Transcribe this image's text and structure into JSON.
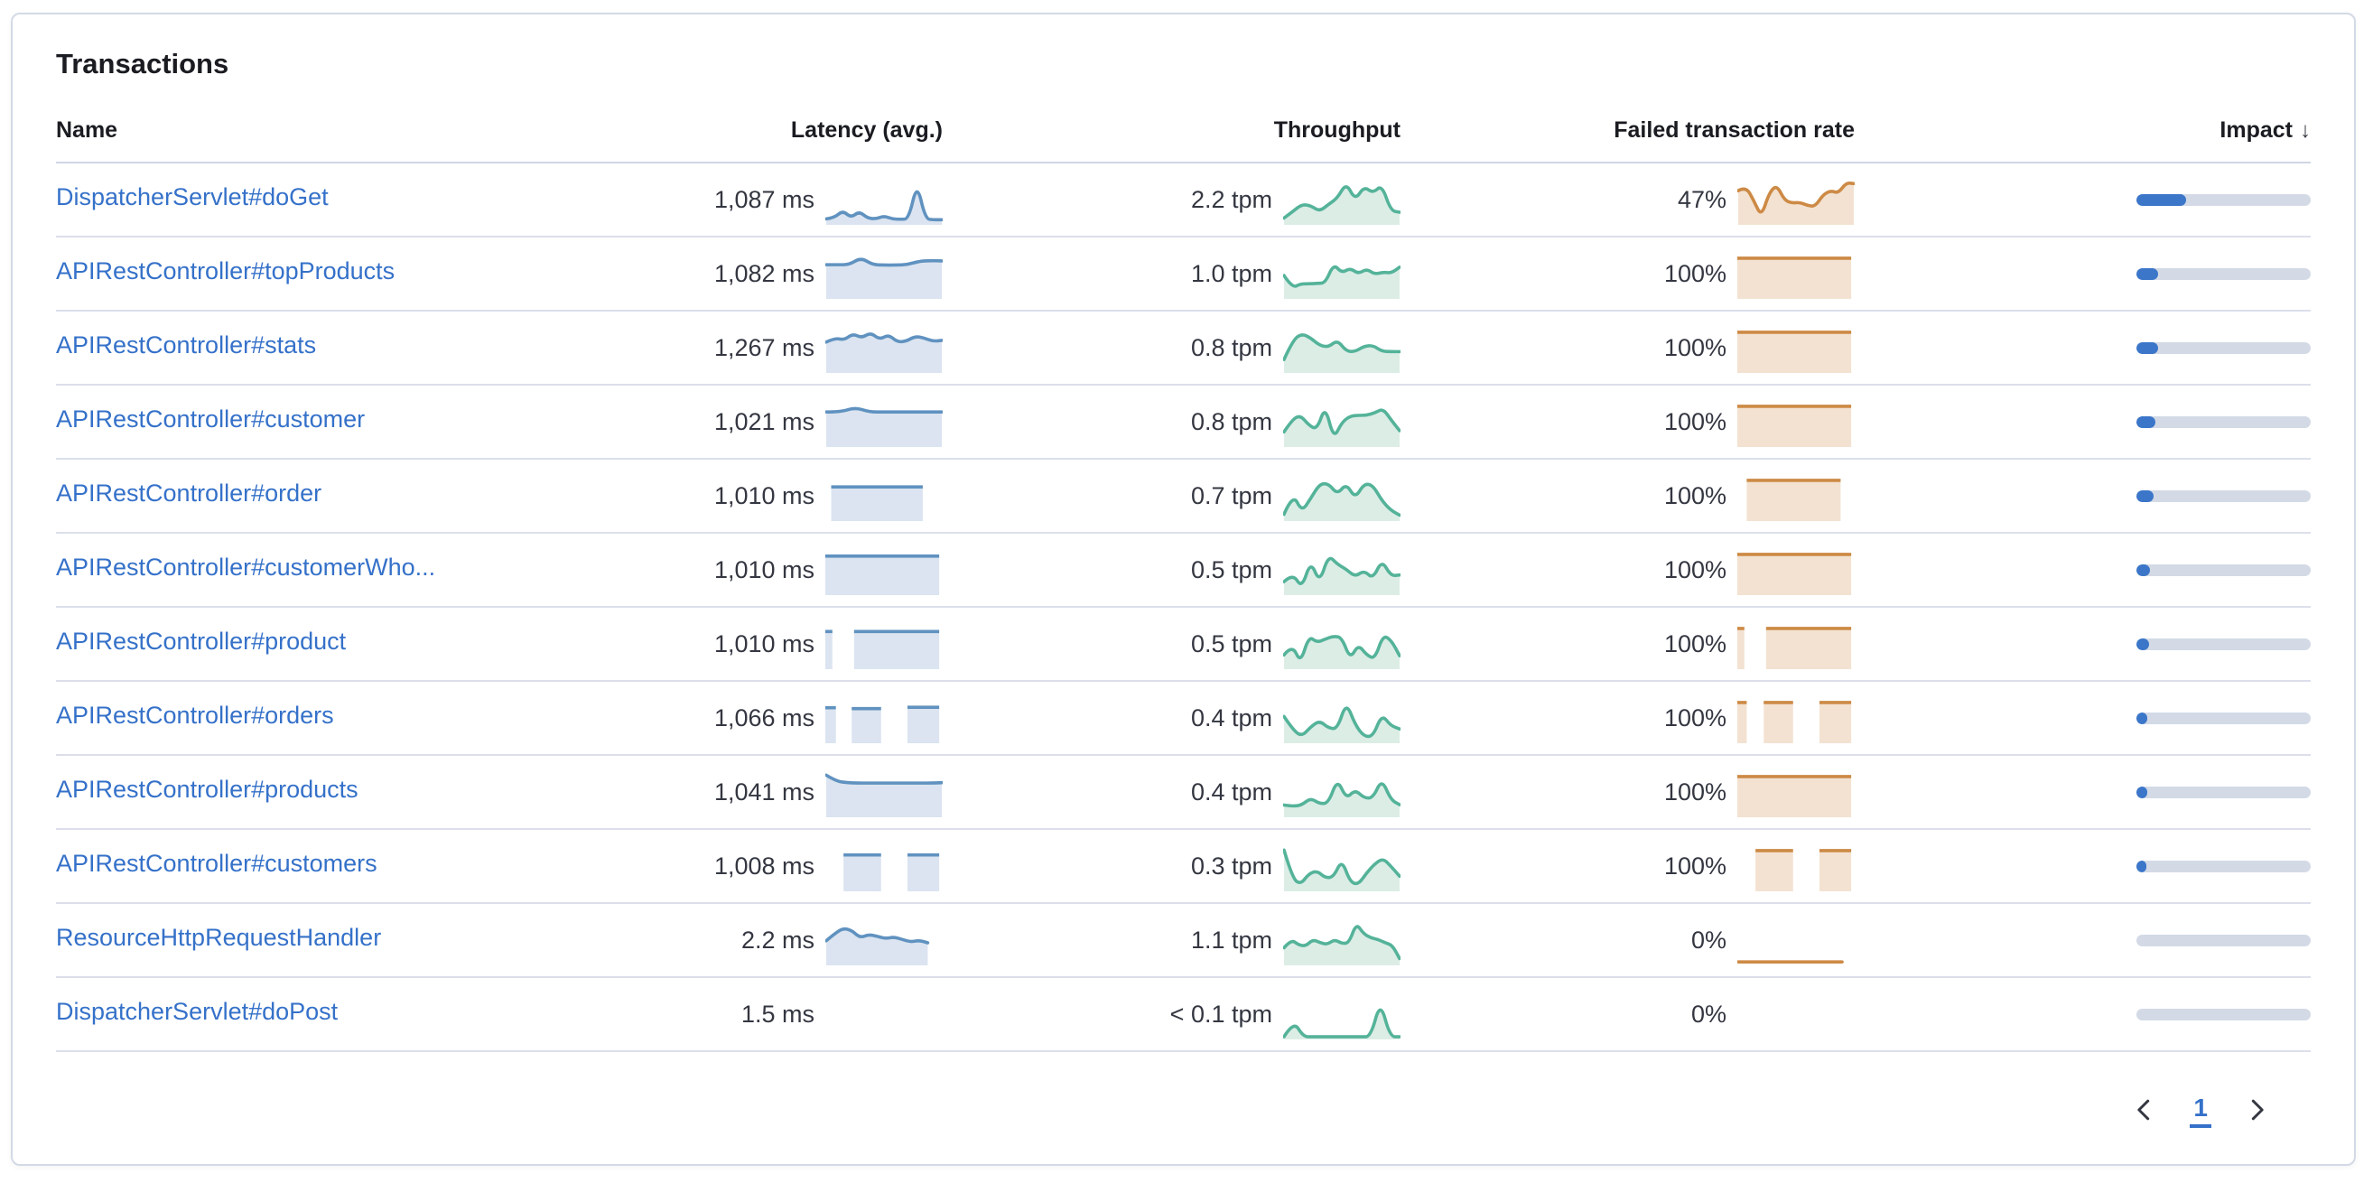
{
  "card": {
    "title": "Transactions"
  },
  "table": {
    "columns": [
      {
        "label": "Name",
        "align": "left"
      },
      {
        "label": "Latency (avg.)",
        "align": "right"
      },
      {
        "label": "Throughput",
        "align": "right"
      },
      {
        "label": "Failed transaction rate",
        "align": "right"
      },
      {
        "label": "Impact",
        "align": "right",
        "sorted": "desc",
        "sort_icon": "arrow-down"
      }
    ],
    "rows": [
      {
        "name": "DispatcherServlet#doGet",
        "latency": "1,087 ms",
        "latency_spark": {
          "type": "area",
          "values": [
            0.1,
            0.13,
            0.3,
            0.13,
            0.28,
            0.12,
            0.1,
            0.17,
            0.1,
            0.09,
            0.1,
            0.97,
            0.1,
            0.08,
            0.08
          ]
        },
        "throughput": "2.2 tpm",
        "throughput_spark": {
          "type": "area",
          "values": [
            0.12,
            0.28,
            0.45,
            0.42,
            0.28,
            0.45,
            0.6,
            0.97,
            0.55,
            0.88,
            0.72,
            0.92,
            0.3,
            0.26
          ]
        },
        "failed_rate": "47%",
        "failed_spark": {
          "type": "area",
          "values": [
            0.78,
            0.88,
            0.55,
            0.15,
            0.72,
            0.92,
            0.55,
            0.48,
            0.5,
            0.42,
            0.4,
            0.68,
            0.78,
            0.72,
            0.97,
            0.95
          ]
        },
        "impact_pct": 28.5
      },
      {
        "name": "APIRestController#topProducts",
        "latency": "1,082 ms",
        "latency_spark": {
          "type": "area",
          "values": [
            0.78,
            0.78,
            0.78,
            0.95,
            0.78,
            0.77,
            0.77,
            0.78,
            0.86,
            0.88,
            0.87
          ]
        },
        "throughput": "1.0 tpm",
        "throughput_spark": {
          "type": "area",
          "values": [
            0.52,
            0.22,
            0.32,
            0.32,
            0.33,
            0.34,
            0.8,
            0.58,
            0.7,
            0.56,
            0.68,
            0.55,
            0.6,
            0.58,
            0.72
          ]
        },
        "failed_rate": "100%",
        "failed_spark": {
          "type": "blocks",
          "segments": [
            {
              "from": 0.0,
              "to": 0.97,
              "level": 0.97
            }
          ]
        },
        "impact_pct": 12.6
      },
      {
        "name": "APIRestController#stats",
        "latency": "1,267 ms",
        "latency_spark": {
          "type": "area",
          "values": [
            0.7,
            0.8,
            0.75,
            0.9,
            0.8,
            0.93,
            0.76,
            0.88,
            0.7,
            0.72,
            0.84,
            0.8,
            0.72,
            0.74
          ]
        },
        "throughput": "0.8 tpm",
        "throughput_spark": {
          "type": "area",
          "values": [
            0.28,
            0.75,
            0.9,
            0.8,
            0.62,
            0.58,
            0.75,
            0.48,
            0.47,
            0.6,
            0.62,
            0.48,
            0.47,
            0.47
          ]
        },
        "failed_rate": "100%",
        "failed_spark": {
          "type": "blocks",
          "segments": [
            {
              "from": 0.0,
              "to": 0.97,
              "level": 0.97
            }
          ]
        },
        "impact_pct": 12.4
      },
      {
        "name": "APIRestController#customer",
        "latency": "1,021 ms",
        "latency_spark": {
          "type": "area",
          "values": [
            0.8,
            0.8,
            0.91,
            0.8,
            0.8,
            0.8,
            0.8,
            0.8,
            0.8
          ]
        },
        "throughput": "0.8 tpm",
        "throughput_spark": {
          "type": "area",
          "values": [
            0.32,
            0.62,
            0.72,
            0.48,
            0.38,
            0.95,
            0.15,
            0.55,
            0.7,
            0.72,
            0.72,
            0.78,
            0.88,
            0.6,
            0.35
          ]
        },
        "failed_rate": "100%",
        "failed_spark": {
          "type": "blocks",
          "segments": [
            {
              "from": 0.0,
              "to": 0.97,
              "level": 0.97
            }
          ]
        },
        "impact_pct": 11.0
      },
      {
        "name": "APIRestController#order",
        "latency": "1,010 ms",
        "latency_spark": {
          "type": "blocks",
          "segments": [
            {
              "from": 0.05,
              "to": 0.83,
              "level": 0.82
            }
          ]
        },
        "throughput": "0.7 tpm",
        "throughput_spark": {
          "type": "area",
          "values": [
            0.12,
            0.62,
            0.18,
            0.5,
            0.85,
            0.86,
            0.6,
            0.86,
            0.5,
            0.86,
            0.82,
            0.45,
            0.22,
            0.1
          ]
        },
        "failed_rate": "100%",
        "failed_spark": {
          "type": "blocks",
          "segments": [
            {
              "from": 0.08,
              "to": 0.88,
              "level": 0.97
            }
          ]
        },
        "impact_pct": 9.6
      },
      {
        "name": "APIRestController#customerWho...",
        "latency": "1,010 ms",
        "latency_spark": {
          "type": "blocks",
          "segments": [
            {
              "from": 0.0,
              "to": 0.97,
              "level": 0.93
            }
          ]
        },
        "throughput": "0.5 tpm",
        "throughput_spark": {
          "type": "area",
          "values": [
            0.28,
            0.48,
            0.12,
            0.78,
            0.25,
            0.92,
            0.7,
            0.58,
            0.4,
            0.55,
            0.35,
            0.8,
            0.42,
            0.44
          ]
        },
        "failed_rate": "100%",
        "failed_spark": {
          "type": "blocks",
          "segments": [
            {
              "from": 0.0,
              "to": 0.97,
              "level": 0.97
            }
          ]
        },
        "impact_pct": 8.0
      },
      {
        "name": "APIRestController#product",
        "latency": "1,010 ms",
        "latency_spark": {
          "type": "blocks",
          "segments": [
            {
              "from": 0.0,
              "to": 0.06,
              "level": 0.9
            },
            {
              "from": 0.245,
              "to": 0.97,
              "level": 0.9
            }
          ]
        },
        "throughput": "0.5 tpm",
        "throughput_spark": {
          "type": "area",
          "values": [
            0.3,
            0.55,
            0.1,
            0.75,
            0.6,
            0.68,
            0.75,
            0.72,
            0.2,
            0.55,
            0.3,
            0.2,
            0.78,
            0.65,
            0.28
          ]
        },
        "failed_rate": "100%",
        "failed_spark": {
          "type": "blocks",
          "segments": [
            {
              "from": 0.0,
              "to": 0.06,
              "level": 0.97
            },
            {
              "from": 0.245,
              "to": 0.97,
              "level": 0.97
            }
          ]
        },
        "impact_pct": 7.0
      },
      {
        "name": "APIRestController#orders",
        "latency": "1,066 ms",
        "latency_spark": {
          "type": "blocks",
          "segments": [
            {
              "from": 0.0,
              "to": 0.09,
              "level": 0.85
            },
            {
              "from": 0.225,
              "to": 0.475,
              "level": 0.83
            },
            {
              "from": 0.7,
              "to": 0.97,
              "level": 0.86
            }
          ]
        },
        "throughput": "0.4 tpm",
        "throughput_spark": {
          "type": "area",
          "values": [
            0.6,
            0.28,
            0.12,
            0.35,
            0.5,
            0.32,
            0.3,
            0.95,
            0.4,
            0.12,
            0.12,
            0.65,
            0.38,
            0.3
          ]
        },
        "failed_rate": "100%",
        "failed_spark": {
          "type": "blocks",
          "segments": [
            {
              "from": 0.0,
              "to": 0.08,
              "level": 0.97
            },
            {
              "from": 0.225,
              "to": 0.475,
              "level": 0.97
            },
            {
              "from": 0.7,
              "to": 0.97,
              "level": 0.97
            }
          ]
        },
        "impact_pct": 6.4
      },
      {
        "name": "APIRestController#products",
        "latency": "1,041 ms",
        "latency_spark": {
          "type": "area",
          "values": [
            0.97,
            0.82,
            0.79,
            0.78,
            0.78,
            0.78,
            0.78,
            0.78,
            0.78,
            0.78,
            0.78,
            0.79
          ]
        },
        "throughput": "0.4 tpm",
        "throughput_spark": {
          "type": "area",
          "values": [
            0.25,
            0.22,
            0.25,
            0.42,
            0.28,
            0.3,
            0.88,
            0.4,
            0.62,
            0.42,
            0.42,
            0.88,
            0.38,
            0.26
          ]
        },
        "failed_rate": "100%",
        "failed_spark": {
          "type": "blocks",
          "segments": [
            {
              "from": 0.0,
              "to": 0.97,
              "level": 0.97
            }
          ]
        },
        "impact_pct": 6.0
      },
      {
        "name": "APIRestController#customers",
        "latency": "1,008 ms",
        "latency_spark": {
          "type": "blocks",
          "segments": [
            {
              "from": 0.155,
              "to": 0.475,
              "level": 0.87
            },
            {
              "from": 0.7,
              "to": 0.97,
              "level": 0.87
            }
          ]
        },
        "throughput": "0.3 tpm",
        "throughput_spark": {
          "type": "area",
          "values": [
            0.95,
            0.28,
            0.12,
            0.38,
            0.45,
            0.28,
            0.3,
            0.72,
            0.18,
            0.12,
            0.4,
            0.62,
            0.75,
            0.55,
            0.32
          ]
        },
        "failed_rate": "100%",
        "failed_spark": {
          "type": "blocks",
          "segments": [
            {
              "from": 0.155,
              "to": 0.475,
              "level": 0.97
            },
            {
              "from": 0.7,
              "to": 0.97,
              "level": 0.97
            }
          ]
        },
        "impact_pct": 5.6
      },
      {
        "name": "ResourceHttpRequestHandler",
        "latency": "2.2 ms",
        "latency_spark": {
          "type": "area",
          "span": 0.88,
          "values": [
            0.55,
            0.72,
            0.85,
            0.8,
            0.62,
            0.7,
            0.66,
            0.6,
            0.64,
            0.58,
            0.52,
            0.56,
            0.5
          ]
        },
        "throughput": "1.1 tpm",
        "throughput_spark": {
          "type": "area",
          "values": [
            0.38,
            0.58,
            0.45,
            0.42,
            0.58,
            0.5,
            0.46,
            0.58,
            0.48,
            0.5,
            0.97,
            0.72,
            0.62,
            0.58,
            0.5,
            0.44,
            0.12
          ]
        },
        "failed_rate": "0%",
        "failed_spark": {
          "type": "line",
          "span": 0.9,
          "values": [
            0.04,
            0.04
          ]
        },
        "impact_pct": 0
      },
      {
        "name": "DispatcherServlet#doPost",
        "latency": "1.5 ms",
        "latency_spark": null,
        "throughput": "< 0.1 tpm",
        "throughput_spark": {
          "type": "area",
          "values": [
            0.02,
            0.4,
            0.02,
            0.02,
            0.02,
            0.02,
            0.02,
            0.02,
            0.02,
            0.02,
            0.88,
            0.02,
            0.02
          ]
        },
        "failed_rate": "0%",
        "failed_spark": null,
        "impact_pct": 0
      }
    ]
  },
  "pagination": {
    "current_page": "1",
    "prev_icon": "chevron-left",
    "next_icon": "chevron-right"
  },
  "colors": {
    "latency_line": "#6092c0",
    "latency_fill": "#dbe4f0",
    "throughput_line": "#54b399",
    "throughput_fill": "#dcede6",
    "failed_line": "#cd8a45",
    "failed_fill": "#f3e2d1",
    "impact_fill": "#3b76c9",
    "impact_track": "#d3dae6",
    "link": "#3571c9"
  }
}
